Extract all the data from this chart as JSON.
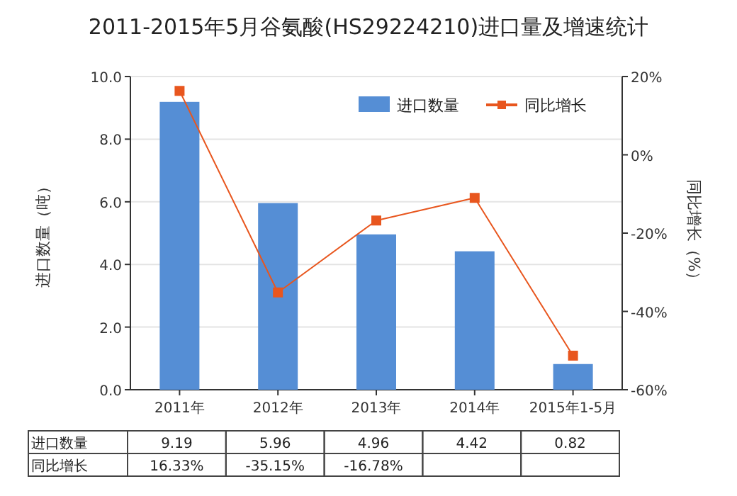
{
  "chart_data": {
    "type": "bar",
    "title": "2011-2015年5月谷氨酸(HS29224210)进口量及增速统计",
    "categories": [
      "2011年",
      "2012年",
      "2013年",
      "2014年",
      "2015年1-5月"
    ],
    "series": [
      {
        "name": "进口数量",
        "color": "#558ed5",
        "values": [
          9.19,
          5.96,
          4.96,
          4.42,
          0.82
        ],
        "value_labels": [
          "9.19",
          "5.96",
          "4.96",
          "4.42",
          "0.82"
        ]
      },
      {
        "name": "同比增长",
        "type": "line",
        "axis": "y2",
        "color": "#e8561e",
        "values": [
          16.33,
          -35.15,
          -16.78,
          -11.0,
          -51.3
        ],
        "value_labels": [
          "16.33%",
          "-35.15%",
          "-16.78%",
          null,
          null
        ]
      }
    ],
    "ylabel": "进口数量（吨）",
    "y2label": "同比增长（%）",
    "ylim": [
      0,
      10
    ],
    "yticks": [
      {
        "value": 0,
        "label": "0.0"
      },
      {
        "value": 2,
        "label": "2.0"
      },
      {
        "value": 4,
        "label": "4.0"
      },
      {
        "value": 6,
        "label": "6.0"
      },
      {
        "value": 8,
        "label": "8.0"
      },
      {
        "value": 10,
        "label": "10.0"
      }
    ],
    "y2lim": [
      -60,
      20
    ],
    "y2ticks": [
      {
        "value": -60,
        "label": "-60%"
      },
      {
        "value": -40,
        "label": "-40%"
      },
      {
        "value": -20,
        "label": "-20%"
      },
      {
        "value": 0,
        "label": "0%"
      },
      {
        "value": 20,
        "label": "20%"
      }
    ],
    "grid": "y",
    "legend": "top right",
    "marker": "square"
  }
}
